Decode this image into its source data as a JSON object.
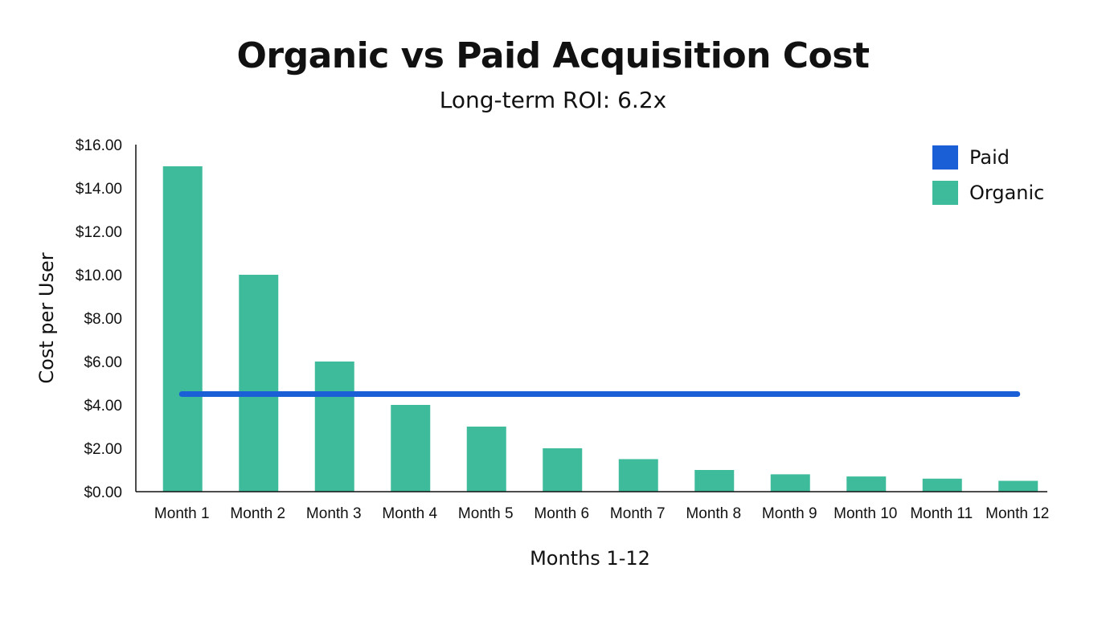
{
  "chart_data": {
    "type": "bar",
    "title": "Organic vs Paid Acquisition Cost",
    "subtitle": "Long-term ROI: 6.2x",
    "xlabel": "Months 1-12",
    "ylabel": "Cost per User",
    "ylim": [
      0,
      16
    ],
    "yticks": [
      "$0.00",
      "$2.00",
      "$4.00",
      "$6.00",
      "$8.00",
      "$10.00",
      "$12.00",
      "$14.00",
      "$16.00"
    ],
    "categories": [
      "Month 1",
      "Month 2",
      "Month 3",
      "Month 4",
      "Month 5",
      "Month 6",
      "Month 7",
      "Month 8",
      "Month 9",
      "Month 10",
      "Month 11",
      "Month 12"
    ],
    "series": [
      {
        "name": "Paid",
        "type": "line",
        "color": "#1a5fd6",
        "values": [
          4.5,
          4.5,
          4.5,
          4.5,
          4.5,
          4.5,
          4.5,
          4.5,
          4.5,
          4.5,
          4.5,
          4.5
        ]
      },
      {
        "name": "Organic",
        "type": "bar",
        "color": "#3dbb9a",
        "values": [
          15,
          10,
          6,
          4,
          3,
          2,
          1.5,
          1,
          0.8,
          0.7,
          0.6,
          0.5
        ]
      }
    ],
    "grid": false,
    "legend_position": "top-right"
  },
  "legend": [
    {
      "label": "Paid",
      "color": "#1a5fd6"
    },
    {
      "label": "Organic",
      "color": "#3dbb9a"
    }
  ]
}
